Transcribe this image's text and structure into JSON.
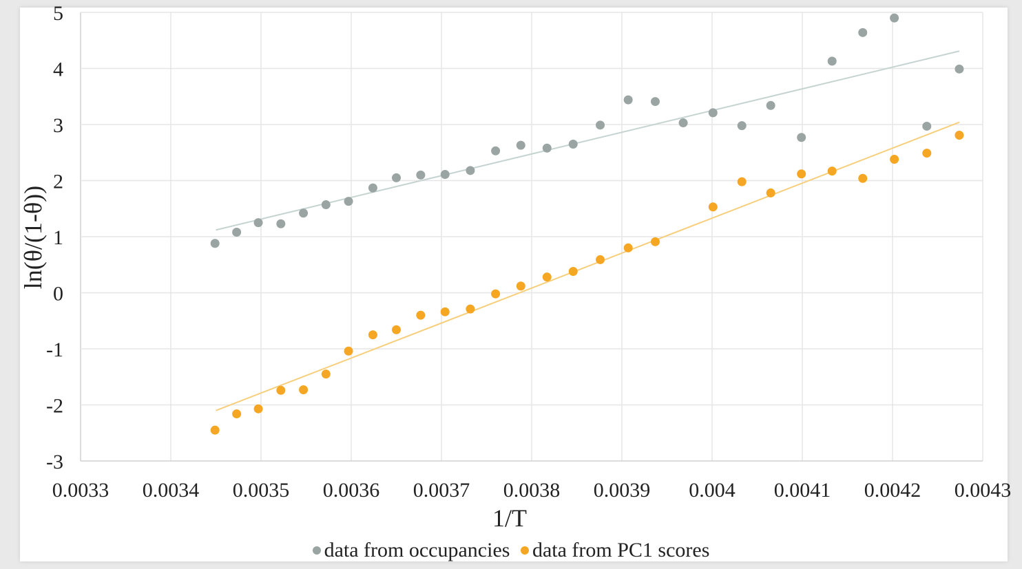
{
  "chart_data": {
    "type": "scatter",
    "title": "",
    "xlabel": "1/T",
    "ylabel": "ln(θ/(1-θ))",
    "xlim": [
      0.0033,
      0.0043
    ],
    "ylim": [
      -3,
      5
    ],
    "grid": true,
    "legend_placement": "bottom",
    "x_ticks": [
      "0.0033",
      "0.0034",
      "0.0035",
      "0.0036",
      "0.0037",
      "0.0038",
      "0.0039",
      "0.004",
      "0.0041",
      "0.0042",
      "0.0043"
    ],
    "y_ticks": [
      "-3",
      "-2",
      "-1",
      "0",
      "1",
      "2",
      "3",
      "4",
      "5"
    ],
    "series": [
      {
        "name": "data from occupancies",
        "color": "#9aa5a3",
        "x": [
          0.003449,
          0.003473,
          0.003497,
          0.003522,
          0.003547,
          0.003572,
          0.003597,
          0.003624,
          0.00365,
          0.003677,
          0.003704,
          0.003732,
          0.00376,
          0.003788,
          0.003817,
          0.003846,
          0.003876,
          0.003907,
          0.003937,
          0.003968,
          0.004001,
          0.004033,
          0.004065,
          0.004099,
          0.004133,
          0.004167,
          0.004202,
          0.004238,
          0.004274
        ],
        "y": [
          0.88,
          1.08,
          1.25,
          1.23,
          1.42,
          1.57,
          1.63,
          1.87,
          2.05,
          2.1,
          2.11,
          2.18,
          2.53,
          2.63,
          2.58,
          2.65,
          2.99,
          3.44,
          3.41,
          3.03,
          3.21,
          2.98,
          3.34,
          2.77,
          4.13,
          4.64,
          4.9,
          2.97,
          3.99
        ],
        "trendline": {
          "x": [
            0.00345,
            0.004274
          ],
          "y": [
            1.12,
            4.31
          ],
          "color": "#c5d3d1"
        }
      },
      {
        "name": "data from PC1 scores",
        "color": "#f5a623",
        "x": [
          0.003449,
          0.003473,
          0.003497,
          0.003522,
          0.003547,
          0.003572,
          0.003597,
          0.003624,
          0.00365,
          0.003677,
          0.003704,
          0.003732,
          0.00376,
          0.003788,
          0.003817,
          0.003846,
          0.003876,
          0.003907,
          0.003937,
          0.004001,
          0.004033,
          0.004065,
          0.004099,
          0.004133,
          0.004167,
          0.004202,
          0.004238,
          0.004274
        ],
        "y": [
          -2.45,
          -2.16,
          -2.07,
          -1.74,
          -1.73,
          -1.45,
          -1.04,
          -0.75,
          -0.66,
          -0.4,
          -0.34,
          -0.29,
          -0.02,
          0.12,
          0.28,
          0.38,
          0.59,
          0.8,
          0.91,
          1.53,
          1.98,
          1.78,
          2.12,
          2.17,
          2.04,
          2.38,
          2.49,
          2.81
        ],
        "trendline": {
          "x": [
            0.00345,
            0.004274
          ],
          "y": [
            -2.1,
            3.04
          ],
          "color": "#f7cf7c"
        }
      }
    ]
  }
}
